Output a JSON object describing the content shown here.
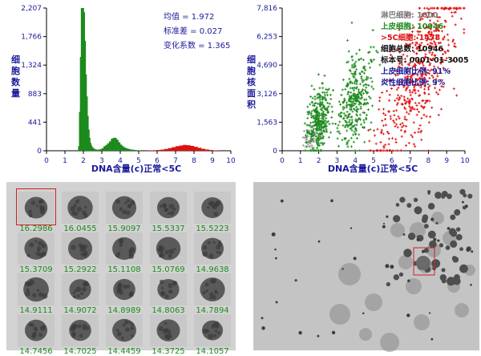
{
  "colors": {
    "bar_green": "#1d8a1d",
    "bar_red": "#e01010",
    "scatter_grey": "#9a9a9a",
    "stats_blue": "#1a1a9a",
    "axis_blue": "#1a1a9a",
    "value_green": "#2a8a2a",
    "highlight_box": "#d02020",
    "panel_bg": "#d0d0d0"
  },
  "chart_data": [
    {
      "type": "bar",
      "ylabel": "细胞数量",
      "xlabel": "DNA含量(c)正常<5C",
      "xlim": [
        0,
        10
      ],
      "ylim": [
        0,
        2207
      ],
      "yticks": [
        "0",
        "441",
        "883",
        "1,324",
        "1,766",
        "2,207"
      ],
      "xticks": [
        "0",
        "1",
        "2",
        "3",
        "4",
        "5",
        "6",
        "7",
        "8",
        "9",
        "10"
      ],
      "stats": [
        {
          "label": "均值",
          "value": "1.972"
        },
        {
          "label": "标准差",
          "value": "0.027"
        },
        {
          "label": "变化系数",
          "value": "1.365"
        }
      ],
      "series": [
        {
          "color": "green",
          "x": [
            1.75,
            1.8,
            1.85,
            1.9,
            1.95,
            2.0,
            2.05,
            2.1,
            2.15,
            2.2,
            2.25,
            2.3,
            2.35,
            2.4,
            2.45,
            2.5,
            2.55,
            2.6,
            2.7,
            2.8,
            2.9,
            3.0,
            3.1,
            3.2,
            3.3,
            3.4,
            3.5,
            3.6,
            3.7,
            3.8,
            3.9,
            4.0,
            4.1,
            4.2,
            4.3,
            4.4,
            4.5,
            4.6,
            4.7,
            4.8,
            4.9,
            5.0
          ],
          "values": [
            10,
            70,
            600,
            1450,
            2207,
            2140,
            1700,
            1180,
            840,
            540,
            330,
            200,
            120,
            80,
            55,
            40,
            30,
            22,
            16,
            14,
            18,
            24,
            40,
            70,
            90,
            115,
            145,
            185,
            200,
            170,
            130,
            95,
            70,
            50,
            38,
            30,
            22,
            18,
            14,
            10,
            8,
            6
          ]
        },
        {
          "color": "red",
          "x": [
            5.5,
            5.7,
            5.9,
            6.1,
            6.3,
            6.5,
            6.7,
            6.9,
            7.1,
            7.3,
            7.5,
            7.7,
            7.9,
            8.1,
            8.3,
            8.5,
            8.7,
            8.9,
            9.1,
            9.3
          ],
          "values": [
            4,
            6,
            8,
            12,
            18,
            28,
            40,
            55,
            70,
            80,
            90,
            85,
            75,
            60,
            45,
            30,
            20,
            12,
            7,
            4
          ]
        }
      ]
    },
    {
      "type": "scatter",
      "ylabel": "细胞核面积",
      "xlabel": "DNA含量(c)正常<5C",
      "xlim": [
        0,
        10
      ],
      "ylim": [
        0,
        7816
      ],
      "yticks": [
        "0",
        "1,563",
        "3,126",
        "4,690",
        "6,253",
        "7,816"
      ],
      "xticks": [
        "0",
        "1",
        "2",
        "3",
        "4",
        "5",
        "6",
        "7",
        "8",
        "9",
        "10"
      ],
      "legend": [
        {
          "text": "淋巴细胞: 1000",
          "color": "#7a7a7a"
        },
        {
          "text": "上皮细胞: 10946",
          "color": "#1d8a1d"
        },
        {
          "text": ">5C细胞: 1478",
          "color": "#e01010"
        },
        {
          "text": "细胞总数: 10946",
          "color": "#111111"
        },
        {
          "text": "标本号: 0001-01-3005",
          "color": "#111111"
        },
        {
          "text": "上皮细胞比例: 91%",
          "color": "#1a1a9a"
        },
        {
          "text": "炎性细胞比例: 9%",
          "color": "#1a1a9a"
        }
      ],
      "clusters": [
        {
          "color": "grey",
          "center": [
            1.55,
            700
          ],
          "spread": [
            0.25,
            300
          ],
          "n": 60
        },
        {
          "color": "green",
          "center": [
            2.0,
            1600
          ],
          "spread": [
            0.3,
            900
          ],
          "n": 320
        },
        {
          "color": "green",
          "center": [
            4.0,
            2800
          ],
          "spread": [
            0.45,
            1200
          ],
          "n": 340
        },
        {
          "color": "red",
          "center": [
            7.4,
            4300
          ],
          "spread": [
            1.1,
            1700
          ],
          "n": 520
        }
      ]
    }
  ],
  "cell_gallery": {
    "values": [
      [
        "16.2986",
        "16.0455",
        "15.9097",
        "15.5337",
        "15.5223"
      ],
      [
        "15.3709",
        "15.2922",
        "15.1108",
        "15.0769",
        "14.9638"
      ],
      [
        "14.9111",
        "14.9072",
        "14.8989",
        "14.8063",
        "14.7894"
      ],
      [
        "14.7456",
        "14.7025",
        "14.4459",
        "14.3725",
        "14.1057"
      ]
    ]
  }
}
